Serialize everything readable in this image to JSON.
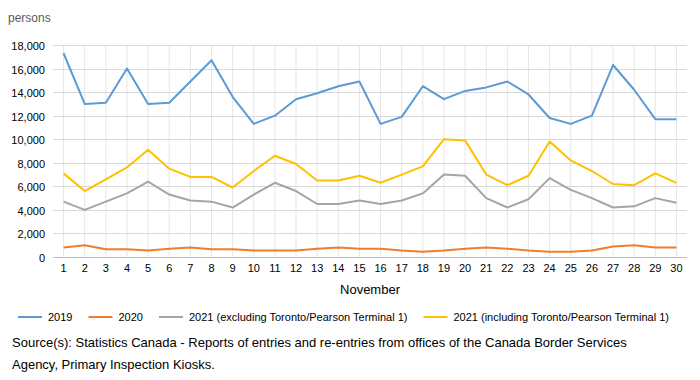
{
  "chart_data": {
    "type": "line",
    "y_label": "persons",
    "x_label": "November",
    "source": "Source(s): Statistics Canada - Reports of entries and re-entries from offices of the Canada Border Services Agency, Primary Inspection Kiosks.",
    "categories": [
      1,
      2,
      3,
      4,
      5,
      6,
      7,
      8,
      9,
      10,
      11,
      12,
      13,
      14,
      15,
      16,
      17,
      18,
      19,
      20,
      21,
      22,
      23,
      24,
      25,
      26,
      27,
      28,
      29,
      30
    ],
    "series": [
      {
        "name": "2019",
        "color": "#5b9bd5",
        "values": [
          17300,
          13000,
          13100,
          16000,
          13000,
          13100,
          14900,
          16700,
          13600,
          11300,
          12000,
          13400,
          13900,
          14500,
          14900,
          11300,
          11900,
          14500,
          13400,
          14100,
          14400,
          14900,
          13800,
          11800,
          11300,
          12000,
          16300,
          14200,
          11700,
          11700
        ]
      },
      {
        "name": "2020",
        "color": "#ed7d31",
        "values": [
          800,
          1000,
          650,
          650,
          550,
          700,
          800,
          650,
          650,
          550,
          550,
          550,
          700,
          800,
          700,
          700,
          550,
          450,
          550,
          700,
          800,
          700,
          550,
          450,
          450,
          550,
          900,
          1000,
          800,
          800
        ]
      },
      {
        "name": "2021 (excluding Toronto/Pearson Terminal 1)",
        "color": "#a5a5a5",
        "values": [
          4700,
          4000,
          4700,
          5400,
          6400,
          5300,
          4800,
          4700,
          4200,
          5300,
          6300,
          5600,
          4500,
          4500,
          4800,
          4500,
          4800,
          5400,
          7000,
          6900,
          5000,
          4200,
          4900,
          6700,
          5700,
          5000,
          4200,
          4300,
          5000,
          4600
        ]
      },
      {
        "name": "2021 (including Toronto/Pearson Terminal 1)",
        "color": "#ffc000",
        "values": [
          7100,
          5600,
          6600,
          7600,
          9100,
          7500,
          6800,
          6800,
          5900,
          7300,
          8600,
          7900,
          6500,
          6500,
          6900,
          6300,
          7000,
          7700,
          10000,
          9900,
          7000,
          6100,
          6900,
          9800,
          8200,
          7300,
          6200,
          6100,
          7100,
          6300
        ]
      }
    ],
    "ylim": [
      0,
      18000
    ],
    "yticks": [
      0,
      {
        "value": 2000,
        "label": "2,000"
      },
      {
        "value": 4000,
        "label": "4,000"
      },
      {
        "value": 6000,
        "label": "6,000"
      },
      {
        "value": 8000,
        "label": "8,000"
      },
      {
        "value": 10000,
        "label": "10,000"
      },
      {
        "value": 12000,
        "label": "12,000"
      },
      {
        "value": 14000,
        "label": "14,000"
      },
      {
        "value": 16000,
        "label": "16,000"
      },
      {
        "value": 18000,
        "label": "18,000"
      }
    ],
    "grid": true,
    "legend": "bottom"
  }
}
